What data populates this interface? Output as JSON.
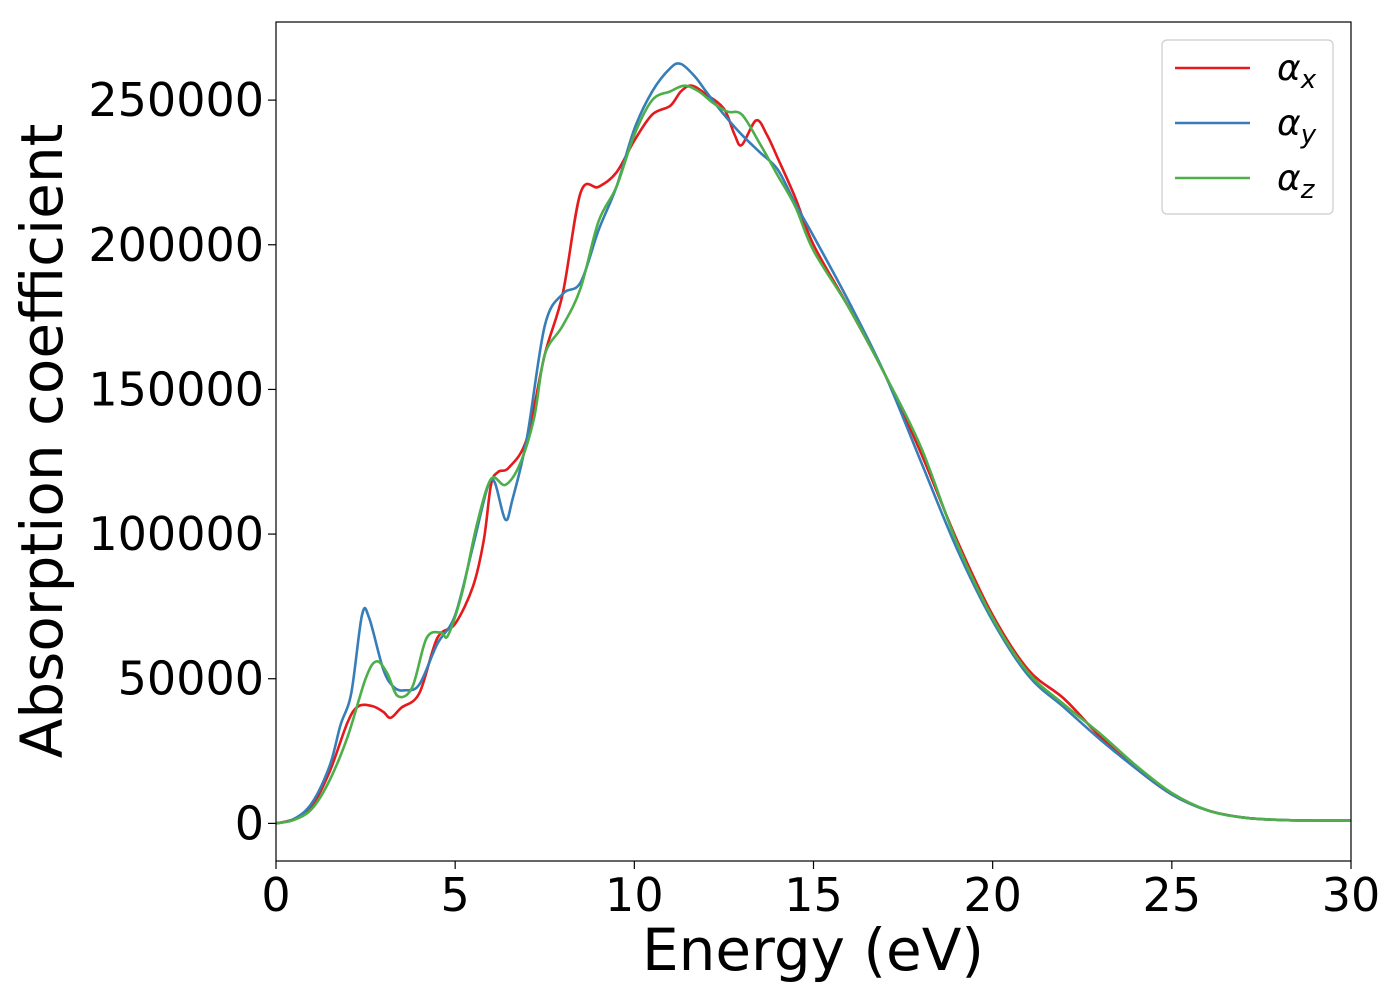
{
  "chart_data": {
    "type": "line",
    "title": "",
    "xlabel": "Energy (eV)",
    "ylabel": "Absorption coefficient",
    "xlim": [
      0,
      30
    ],
    "ylim": [
      -13000,
      277000
    ],
    "xticks": [
      0,
      5,
      10,
      15,
      20,
      25,
      30
    ],
    "yticks": [
      0,
      50000,
      100000,
      150000,
      200000,
      250000
    ],
    "xtick_labels": [
      "0",
      "5",
      "10",
      "15",
      "20",
      "25",
      "30"
    ],
    "ytick_labels": [
      "0",
      "50000",
      "100000",
      "150000",
      "200000",
      "250000"
    ],
    "grid": false,
    "legend_position": "top-right",
    "series": [
      {
        "name": "α_x",
        "label_base": "α",
        "label_sub": "x",
        "color": "#e41a1c",
        "points": [
          [
            0,
            0
          ],
          [
            0.5,
            1500
          ],
          [
            1,
            6000
          ],
          [
            1.5,
            18000
          ],
          [
            2,
            35000
          ],
          [
            2.3,
            40500
          ],
          [
            2.7,
            40500
          ],
          [
            3,
            38500
          ],
          [
            3.2,
            36500
          ],
          [
            3.5,
            40000
          ],
          [
            4,
            45000
          ],
          [
            4.5,
            64000
          ],
          [
            5,
            69000
          ],
          [
            5.5,
            82000
          ],
          [
            5.8,
            98000
          ],
          [
            6,
            117000
          ],
          [
            6.2,
            121500
          ],
          [
            6.5,
            123000
          ],
          [
            7,
            133000
          ],
          [
            7.5,
            162000
          ],
          [
            8,
            183000
          ],
          [
            8.5,
            218000
          ],
          [
            9,
            220000
          ],
          [
            9.5,
            225000
          ],
          [
            10,
            236000
          ],
          [
            10.5,
            245000
          ],
          [
            11,
            248000
          ],
          [
            11.3,
            253000
          ],
          [
            11.6,
            255000
          ],
          [
            12,
            252000
          ],
          [
            12.5,
            247000
          ],
          [
            12.8,
            238000
          ],
          [
            13,
            234500
          ],
          [
            13.4,
            243000
          ],
          [
            13.7,
            238000
          ],
          [
            14,
            230000
          ],
          [
            14.5,
            216000
          ],
          [
            15,
            200000
          ],
          [
            16,
            178000
          ],
          [
            17,
            155000
          ],
          [
            18,
            128000
          ],
          [
            19,
            98000
          ],
          [
            20,
            72000
          ],
          [
            21,
            53000
          ],
          [
            22,
            43000
          ],
          [
            23,
            30000
          ],
          [
            24,
            19000
          ],
          [
            25,
            10000
          ],
          [
            26,
            4500
          ],
          [
            27,
            2000
          ],
          [
            28,
            1200
          ],
          [
            29,
            1000
          ],
          [
            30,
            1000
          ]
        ]
      },
      {
        "name": "α_y",
        "label_base": "α",
        "label_sub": "y",
        "color": "#377eb8",
        "points": [
          [
            0,
            0
          ],
          [
            0.5,
            1500
          ],
          [
            1,
            7000
          ],
          [
            1.5,
            20000
          ],
          [
            1.8,
            34000
          ],
          [
            2.1,
            45000
          ],
          [
            2.4,
            72000
          ],
          [
            2.6,
            71000
          ],
          [
            3,
            53000
          ],
          [
            3.3,
            47000
          ],
          [
            3.6,
            46000
          ],
          [
            4,
            48000
          ],
          [
            4.5,
            62000
          ],
          [
            5,
            72000
          ],
          [
            5.5,
            96000
          ],
          [
            5.9,
            116000
          ],
          [
            6.1,
            118000
          ],
          [
            6.4,
            105000
          ],
          [
            6.6,
            112000
          ],
          [
            7,
            133000
          ],
          [
            7.5,
            172000
          ],
          [
            8,
            183000
          ],
          [
            8.5,
            187000
          ],
          [
            9,
            205000
          ],
          [
            9.5,
            220000
          ],
          [
            10,
            240000
          ],
          [
            10.5,
            253000
          ],
          [
            11,
            261000
          ],
          [
            11.3,
            262500
          ],
          [
            11.7,
            258000
          ],
          [
            12,
            253000
          ],
          [
            12.5,
            245000
          ],
          [
            13,
            238000
          ],
          [
            13.5,
            232000
          ],
          [
            14,
            226000
          ],
          [
            14.5,
            214000
          ],
          [
            15,
            203000
          ],
          [
            16,
            180000
          ],
          [
            17,
            155000
          ],
          [
            18,
            125000
          ],
          [
            19,
            95000
          ],
          [
            20,
            70000
          ],
          [
            21,
            51000
          ],
          [
            22,
            40000
          ],
          [
            23,
            29000
          ],
          [
            24,
            19000
          ],
          [
            25,
            10000
          ],
          [
            26,
            4500
          ],
          [
            27,
            2000
          ],
          [
            28,
            1200
          ],
          [
            29,
            1000
          ],
          [
            30,
            1000
          ]
        ]
      },
      {
        "name": "α_z",
        "label_base": "α",
        "label_sub": "z",
        "color": "#4daf4a",
        "points": [
          [
            0,
            0
          ],
          [
            0.5,
            1200
          ],
          [
            1,
            5000
          ],
          [
            1.5,
            15000
          ],
          [
            2,
            30000
          ],
          [
            2.5,
            50000
          ],
          [
            2.8,
            56000
          ],
          [
            3.1,
            52000
          ],
          [
            3.4,
            44000
          ],
          [
            3.8,
            47000
          ],
          [
            4.2,
            64000
          ],
          [
            4.6,
            66000
          ],
          [
            4.8,
            65000
          ],
          [
            5.2,
            80000
          ],
          [
            5.6,
            103000
          ],
          [
            6,
            119000
          ],
          [
            6.4,
            117000
          ],
          [
            6.8,
            124000
          ],
          [
            7.2,
            140000
          ],
          [
            7.5,
            162000
          ],
          [
            8,
            172000
          ],
          [
            8.5,
            185000
          ],
          [
            9,
            208000
          ],
          [
            9.5,
            220000
          ],
          [
            10,
            238000
          ],
          [
            10.5,
            250000
          ],
          [
            11,
            253000
          ],
          [
            11.4,
            255000
          ],
          [
            11.8,
            253000
          ],
          [
            12.2,
            249000
          ],
          [
            12.6,
            246000
          ],
          [
            13,
            245000
          ],
          [
            13.5,
            235000
          ],
          [
            14,
            224000
          ],
          [
            14.5,
            213000
          ],
          [
            15,
            198000
          ],
          [
            16,
            178000
          ],
          [
            17,
            155000
          ],
          [
            18,
            130000
          ],
          [
            19,
            97000
          ],
          [
            20,
            71000
          ],
          [
            21,
            52000
          ],
          [
            22,
            41000
          ],
          [
            23,
            31000
          ],
          [
            24,
            20000
          ],
          [
            25,
            10500
          ],
          [
            26,
            4500
          ],
          [
            27,
            2000
          ],
          [
            28,
            1200
          ],
          [
            29,
            1000
          ],
          [
            30,
            1000
          ]
        ]
      }
    ]
  }
}
